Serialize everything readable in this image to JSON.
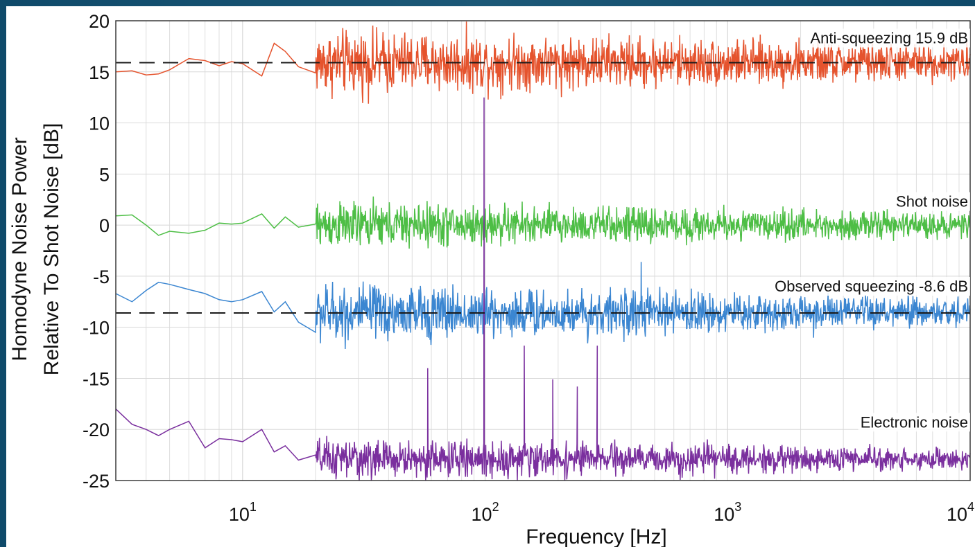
{
  "chart_data": {
    "type": "line",
    "xscale": "log",
    "xlim": [
      3,
      10000
    ],
    "ylim": [
      -25,
      20
    ],
    "grid": true,
    "xlabel": "Frequency [Hz]",
    "ylabel": [
      "Homodyne Noise Power",
      "Relative To Shot Noise [dB]"
    ],
    "yticks": [
      20,
      15,
      10,
      5,
      0,
      -5,
      -10,
      -15,
      -20,
      -25
    ],
    "yticklabels": [
      "20",
      "15",
      "10",
      "5",
      "0",
      "-5",
      "-10",
      "-15",
      "-20",
      "-25"
    ],
    "xticks": [
      10,
      100,
      1000,
      10000
    ],
    "xticklabels": [
      {
        "base": "10",
        "exp": "1"
      },
      {
        "base": "10",
        "exp": "2"
      },
      {
        "base": "10",
        "exp": "3"
      },
      {
        "base": "10",
        "exp": "4"
      }
    ],
    "reference_lines": [
      {
        "label": "Anti-squeezing 15.9 dB",
        "y": 15.9,
        "style": "dashed"
      },
      {
        "label": "Observed squeezing -8.6 dB",
        "y": -8.6,
        "style": "dashed"
      }
    ],
    "series": [
      {
        "name": "Anti-squeezing",
        "label": "Anti-squeezing 15.9 dB",
        "color": "#e5532d",
        "level": 15.9,
        "noise": [
          1.2,
          2.2
        ],
        "x": [
          3,
          3.5,
          4,
          4.5,
          5,
          6,
          7,
          8,
          9,
          10,
          12,
          13.5,
          15,
          17,
          20
        ],
        "y": [
          15.0,
          15.1,
          14.7,
          14.8,
          15.2,
          16.3,
          16.1,
          15.6,
          16.0,
          15.8,
          14.6,
          17.8,
          17.0,
          15.5,
          14.9
        ],
        "spikes": []
      },
      {
        "name": "Shot noise",
        "label": "Shot noise",
        "color": "#4dbe45",
        "level": 0,
        "noise": [
          0.8,
          1.6
        ],
        "x": [
          3,
          3.5,
          4,
          4.5,
          5,
          6,
          7,
          8,
          9,
          10,
          12,
          13.5,
          15,
          17,
          20
        ],
        "y": [
          0.9,
          1.0,
          0.0,
          -1.0,
          -0.6,
          -0.8,
          -0.5,
          0.2,
          0.1,
          0.2,
          1.1,
          -0.3,
          0.8,
          -0.2,
          0.1
        ],
        "spikes": []
      },
      {
        "name": "Observed squeezing",
        "label": "Observed squeezing -8.6 dB",
        "color": "#3b86d1",
        "level": -8.6,
        "noise": [
          1.0,
          2.0
        ],
        "x": [
          3,
          3.5,
          4,
          4.5,
          5,
          6,
          7,
          8,
          9,
          10,
          12,
          13.5,
          15,
          17,
          20
        ],
        "y": [
          -6.7,
          -7.5,
          -6.4,
          -5.6,
          -5.8,
          -6.3,
          -6.7,
          -7.3,
          -7.5,
          -7.3,
          -6.5,
          -8.5,
          -7.5,
          -9.5,
          -10.5
        ],
        "spikes": [
          {
            "x": 440,
            "y": -3.6
          }
        ]
      },
      {
        "name": "Electronic noise",
        "label": "Electronic noise",
        "color": "#7a2f9e",
        "level": -22.9,
        "noise": [
          0.7,
          1.4
        ],
        "x": [
          3,
          3.5,
          4,
          4.5,
          5,
          6,
          7,
          8,
          9,
          10,
          12,
          13.5,
          15,
          17,
          20
        ],
        "y": [
          -18.0,
          -19.5,
          -20.0,
          -20.6,
          -20.0,
          -19.2,
          -21.8,
          -20.9,
          -21.0,
          -21.2,
          -20.0,
          -22.2,
          -21.6,
          -23.0,
          -22.5
        ],
        "spikes": [
          {
            "x": 58,
            "y": -14.0
          },
          {
            "x": 99,
            "y": 12.5
          },
          {
            "x": 145,
            "y": -11.8
          },
          {
            "x": 190,
            "y": -15.1
          },
          {
            "x": 240,
            "y": -15.8
          },
          {
            "x": 290,
            "y": -11.8
          }
        ]
      }
    ]
  }
}
